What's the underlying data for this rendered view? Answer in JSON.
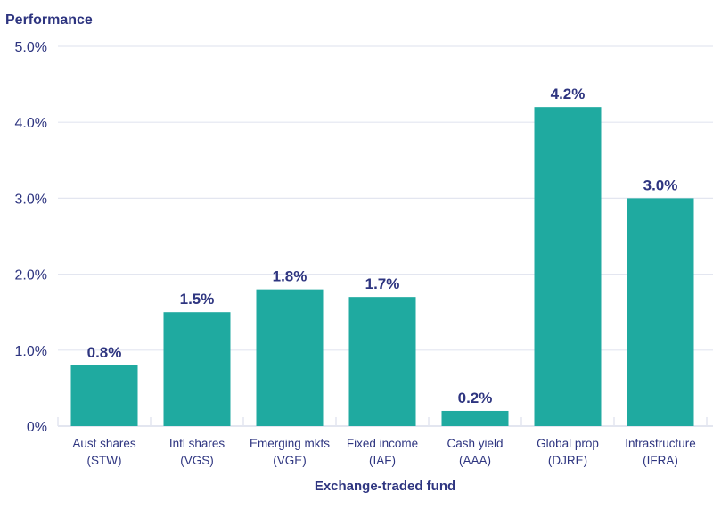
{
  "chart_data": {
    "type": "bar",
    "title": "Performance",
    "xlabel": "Exchange-traded fund",
    "ylabel": "",
    "ylim": [
      0,
      5
    ],
    "yticks": [
      "0%",
      "1.0%",
      "2.0%",
      "3.0%",
      "4.0%",
      "5.0%"
    ],
    "ytick_values": [
      0,
      1,
      2,
      3,
      4,
      5
    ],
    "grid": true,
    "categories": [
      [
        "Aust shares",
        "(STW)"
      ],
      [
        "Intl shares",
        "(VGS)"
      ],
      [
        "Emerging mkts",
        "(VGE)"
      ],
      [
        "Fixed income",
        "(IAF)"
      ],
      [
        "Cash yield",
        "(AAA)"
      ],
      [
        "Global prop",
        "(DJRE)"
      ],
      [
        "Infrastructure",
        "(IFRA)"
      ]
    ],
    "values": [
      0.8,
      1.5,
      1.8,
      1.7,
      0.2,
      4.2,
      3.0
    ],
    "data_labels": [
      "0.8%",
      "1.5%",
      "1.8%",
      "1.7%",
      "0.2%",
      "4.2%",
      "3.0%"
    ],
    "colors": {
      "bar": "#1faaa0",
      "text": "#2e3580",
      "grid": "#e3e6f0"
    }
  }
}
